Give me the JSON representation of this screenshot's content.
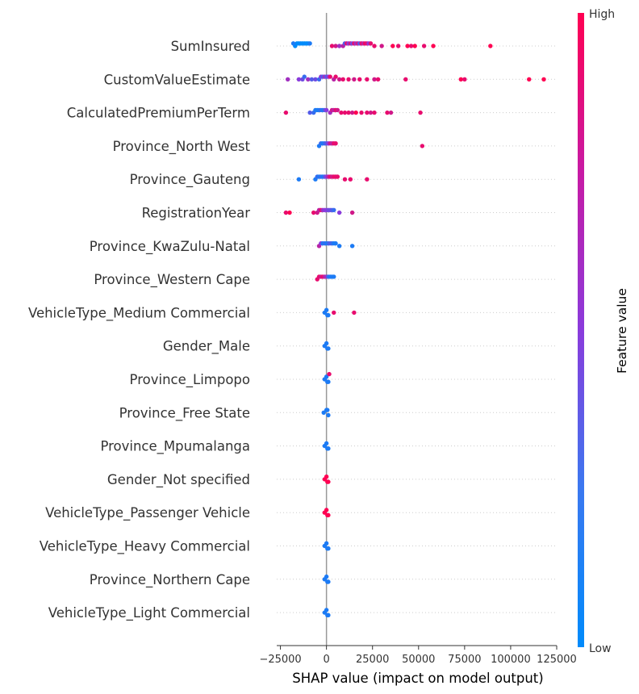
{
  "chart_data": {
    "type": "scatter",
    "subtype": "shap-beeswarm",
    "xlabel": "SHAP value (impact on model output)",
    "xlim": [
      -27000,
      125000
    ],
    "xticks": [
      -25000,
      0,
      25000,
      50000,
      75000,
      100000,
      125000
    ],
    "xtick_labels": [
      "−25000",
      "0",
      "25000",
      "50000",
      "75000",
      "100000",
      "125000"
    ],
    "colorbar": {
      "label": "Feature value",
      "high_label": "High",
      "low_label": "Low",
      "low_color": "#008bfb",
      "high_color": "#ff0052"
    },
    "colors": {
      "low": "#008bfb",
      "mid": "#8a3bdc",
      "high": "#ff0052",
      "zero_line": "#999999",
      "row_guide": "#cccccc"
    },
    "features": [
      {
        "name": "SumInsured",
        "points": [
          [
            -17000,
            0
          ],
          [
            -16000,
            0
          ],
          [
            -15000,
            0
          ],
          [
            -14000,
            0
          ],
          [
            -13000,
            0
          ],
          [
            -12000,
            0
          ],
          [
            -11000,
            0
          ],
          [
            -10000,
            0
          ],
          [
            -18000,
            0.1
          ],
          [
            -9000,
            0.1
          ],
          [
            3000,
            0.9
          ],
          [
            5000,
            0.8
          ],
          [
            7000,
            0.6
          ],
          [
            9000,
            0.7
          ],
          [
            10000,
            0.3
          ],
          [
            11000,
            0.9
          ],
          [
            12000,
            0.5
          ],
          [
            13000,
            0.8
          ],
          [
            14000,
            0.4
          ],
          [
            15000,
            0.9
          ],
          [
            16000,
            0.6
          ],
          [
            17000,
            0.8
          ],
          [
            18000,
            0.3
          ],
          [
            19000,
            0.9
          ],
          [
            20000,
            0.7
          ],
          [
            21000,
            0.95
          ],
          [
            22000,
            0.85
          ],
          [
            23000,
            0.5
          ],
          [
            24000,
            0.9
          ],
          [
            26000,
            0.9
          ],
          [
            30000,
            0.8
          ],
          [
            36000,
            1.0
          ],
          [
            39000,
            0.9
          ],
          [
            44000,
            1.0
          ],
          [
            46000,
            0.9
          ],
          [
            48000,
            1.0
          ],
          [
            53000,
            0.9
          ],
          [
            58000,
            1.0
          ],
          [
            89000,
            1.0
          ]
        ]
      },
      {
        "name": "CustomValueEstimate",
        "points": [
          [
            -21000,
            0.6
          ],
          [
            -15000,
            0.5
          ],
          [
            -13000,
            0.4
          ],
          [
            -12000,
            0.2
          ],
          [
            -10000,
            0.6
          ],
          [
            -8000,
            0.3
          ],
          [
            -6000,
            0.4
          ],
          [
            -4000,
            0.2
          ],
          [
            -3000,
            0.5
          ],
          [
            -2000,
            0.3
          ],
          [
            -1000,
            0.6
          ],
          [
            0,
            0.3
          ],
          [
            1000,
            0.5
          ],
          [
            2000,
            0.9
          ],
          [
            4000,
            0.7
          ],
          [
            5000,
            0.9
          ],
          [
            7000,
            0.8
          ],
          [
            9000,
            0.9
          ],
          [
            12000,
            0.9
          ],
          [
            15000,
            0.8
          ],
          [
            18000,
            0.9
          ],
          [
            22000,
            0.9
          ],
          [
            26000,
            0.8
          ],
          [
            28000,
            0.9
          ],
          [
            43000,
            0.9
          ],
          [
            73000,
            1.0
          ],
          [
            75000,
            0.9
          ],
          [
            110000,
            1.0
          ],
          [
            118000,
            1.0
          ]
        ]
      },
      {
        "name": "CalculatedPremiumPerTerm",
        "points": [
          [
            -22000,
            0.9
          ],
          [
            -9000,
            0.3
          ],
          [
            -7000,
            0.2
          ],
          [
            -6000,
            0.1
          ],
          [
            -5000,
            0.1
          ],
          [
            -4000,
            0.1
          ],
          [
            -3000,
            0.2
          ],
          [
            -2000,
            0.1
          ],
          [
            -1000,
            0.3
          ],
          [
            0,
            0.5
          ],
          [
            2000,
            0.6
          ],
          [
            3000,
            0.8
          ],
          [
            4000,
            0.7
          ],
          [
            5000,
            0.9
          ],
          [
            6000,
            0.8
          ],
          [
            8000,
            0.9
          ],
          [
            10000,
            0.9
          ],
          [
            12000,
            0.9
          ],
          [
            14000,
            0.8
          ],
          [
            16000,
            1.0
          ],
          [
            19000,
            0.9
          ],
          [
            22000,
            0.9
          ],
          [
            24000,
            0.8
          ],
          [
            26000,
            0.9
          ],
          [
            33000,
            0.9
          ],
          [
            35000,
            0.8
          ],
          [
            51000,
            0.9
          ]
        ]
      },
      {
        "name": "Province_North West",
        "points": [
          [
            -4000,
            0.1
          ],
          [
            -3000,
            0.2
          ],
          [
            -2000,
            0.1
          ],
          [
            -1000,
            0.2
          ],
          [
            0,
            0.3
          ],
          [
            1000,
            0.5
          ],
          [
            2000,
            0.8
          ],
          [
            3000,
            0.7
          ],
          [
            4000,
            0.9
          ],
          [
            5000,
            0.9
          ],
          [
            52000,
            0.9
          ]
        ]
      },
      {
        "name": "Province_Gauteng",
        "points": [
          [
            -15000,
            0.1
          ],
          [
            -6000,
            0.1
          ],
          [
            -5000,
            0.2
          ],
          [
            -4000,
            0.1
          ],
          [
            -3000,
            0.2
          ],
          [
            -2000,
            0.1
          ],
          [
            -1000,
            0.3
          ],
          [
            0,
            0.5
          ],
          [
            1000,
            0.7
          ],
          [
            2000,
            0.9
          ],
          [
            3000,
            0.8
          ],
          [
            4000,
            0.9
          ],
          [
            5000,
            0.9
          ],
          [
            6000,
            0.9
          ],
          [
            10000,
            0.9
          ],
          [
            13000,
            0.9
          ],
          [
            22000,
            0.9
          ]
        ]
      },
      {
        "name": "RegistrationYear",
        "points": [
          [
            -22000,
            0.9
          ],
          [
            -20000,
            1.0
          ],
          [
            -7000,
            0.9
          ],
          [
            -5000,
            0.8
          ],
          [
            -4000,
            0.7
          ],
          [
            -3000,
            0.9
          ],
          [
            -2000,
            0.6
          ],
          [
            -1000,
            0.5
          ],
          [
            0,
            0.5
          ],
          [
            1000,
            0.4
          ],
          [
            2000,
            0.4
          ],
          [
            3000,
            0.3
          ],
          [
            4000,
            0.2
          ],
          [
            7000,
            0.5
          ],
          [
            14000,
            0.8
          ]
        ]
      },
      {
        "name": "Province_KwaZulu-Natal",
        "points": [
          [
            -4000,
            0.7
          ],
          [
            -3000,
            0.5
          ],
          [
            -2000,
            0.1
          ],
          [
            -1000,
            0.2
          ],
          [
            0,
            0.1
          ],
          [
            1000,
            0.2
          ],
          [
            2000,
            0.3
          ],
          [
            3000,
            0.2
          ],
          [
            4000,
            0.1
          ],
          [
            5000,
            0.1
          ],
          [
            7000,
            0.1
          ],
          [
            14000,
            0.1
          ]
        ]
      },
      {
        "name": "Province_Western Cape",
        "points": [
          [
            -5000,
            0.9
          ],
          [
            -4000,
            0.9
          ],
          [
            -3000,
            0.8
          ],
          [
            -2000,
            0.9
          ],
          [
            -1000,
            0.7
          ],
          [
            0,
            0.6
          ],
          [
            1000,
            0.2
          ],
          [
            2000,
            0.1
          ],
          [
            3000,
            0.1
          ],
          [
            4000,
            0.1
          ]
        ]
      },
      {
        "name": "VehicleType_Medium Commercial",
        "points": [
          [
            -1000,
            0.1
          ],
          [
            0,
            0.1
          ],
          [
            500,
            0.1
          ],
          [
            1000,
            0.1
          ],
          [
            4000,
            0.9
          ],
          [
            15000,
            0.9
          ]
        ]
      },
      {
        "name": "Gender_Male",
        "points": [
          [
            -1000,
            0.1
          ],
          [
            0,
            0.1
          ],
          [
            500,
            0.1
          ],
          [
            1000,
            0.1
          ]
        ]
      },
      {
        "name": "Province_Limpopo",
        "points": [
          [
            -1000,
            0.1
          ],
          [
            0,
            0.1
          ],
          [
            500,
            0.1
          ],
          [
            1000,
            0.1
          ],
          [
            1500,
            0.9
          ]
        ]
      },
      {
        "name": "Province_Free State",
        "points": [
          [
            -1500,
            0.1
          ],
          [
            0,
            0.1
          ],
          [
            500,
            0.1
          ],
          [
            1000,
            0.1
          ]
        ]
      },
      {
        "name": "Province_Mpumalanga",
        "points": [
          [
            -1000,
            0.1
          ],
          [
            0,
            0.1
          ],
          [
            500,
            0.1
          ],
          [
            1000,
            0.1
          ]
        ]
      },
      {
        "name": "Gender_Not specified",
        "points": [
          [
            -1000,
            1.0
          ],
          [
            0,
            1.0
          ],
          [
            500,
            1.0
          ],
          [
            1000,
            1.0
          ]
        ]
      },
      {
        "name": "VehicleType_Passenger Vehicle",
        "points": [
          [
            -1000,
            1.0
          ],
          [
            0,
            1.0
          ],
          [
            500,
            1.0
          ],
          [
            1000,
            1.0
          ]
        ]
      },
      {
        "name": "VehicleType_Heavy Commercial",
        "points": [
          [
            -1000,
            0.1
          ],
          [
            0,
            0.1
          ],
          [
            500,
            0.1
          ],
          [
            1000,
            0.1
          ]
        ]
      },
      {
        "name": "Province_Northern Cape",
        "points": [
          [
            -1000,
            0.1
          ],
          [
            0,
            0.1
          ],
          [
            500,
            0.1
          ],
          [
            1000,
            0.1
          ]
        ]
      },
      {
        "name": "VehicleType_Light Commercial",
        "points": [
          [
            -1000,
            0.1
          ],
          [
            0,
            0.1
          ],
          [
            500,
            0.1
          ],
          [
            1000,
            0.1
          ]
        ]
      }
    ]
  }
}
